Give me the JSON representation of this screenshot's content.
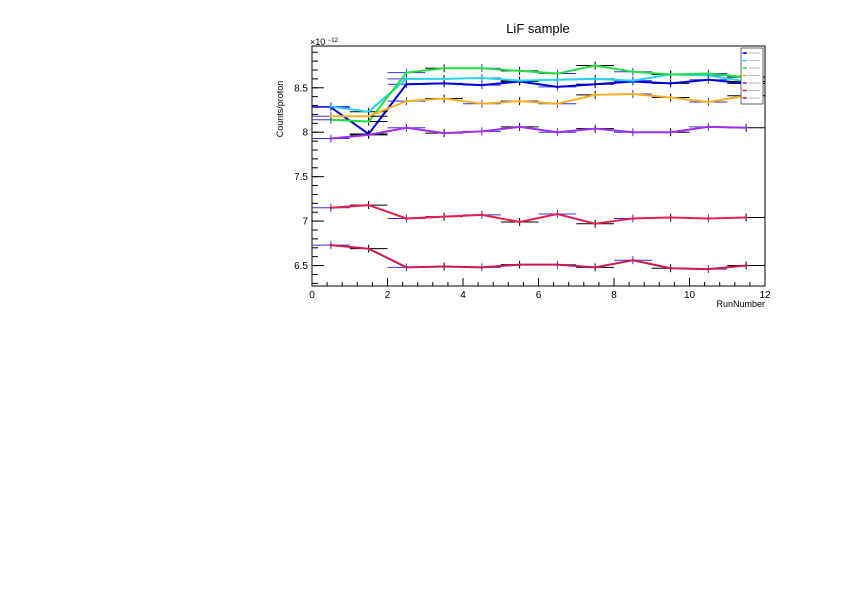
{
  "chart_data": {
    "type": "line",
    "title": "LiF sample",
    "xlabel": "RunNumber",
    "ylabel": "Counts/proton",
    "y_exponent_label": "×10",
    "y_exponent_power": "−12",
    "xlim": [
      0,
      12
    ],
    "ylim": [
      6.27,
      8.97
    ],
    "x_ticks": [
      0,
      2,
      4,
      6,
      8,
      10,
      12
    ],
    "y_ticks": [
      6.5,
      7,
      7.5,
      8,
      8.5
    ],
    "grid": false,
    "legend_position": "top-right",
    "x": [
      0.5,
      1.5,
      2.5,
      3.5,
      4.5,
      5.5,
      6.5,
      7.5,
      8.5,
      9.5,
      10.5,
      11.5
    ],
    "series": [
      {
        "color": "#0000dd",
        "values": [
          8.28,
          7.98,
          8.54,
          8.55,
          8.53,
          8.57,
          8.51,
          8.54,
          8.57,
          8.55,
          8.59,
          8.55
        ]
      },
      {
        "color": "#22d4ee",
        "values": [
          8.29,
          8.23,
          8.6,
          8.6,
          8.61,
          8.58,
          8.59,
          8.6,
          8.58,
          8.65,
          8.64,
          8.57
        ]
      },
      {
        "color": "#22dd44",
        "values": [
          8.14,
          8.12,
          8.67,
          8.72,
          8.72,
          8.69,
          8.66,
          8.75,
          8.68,
          8.65,
          8.66,
          8.62
        ]
      },
      {
        "color": "#f0b020",
        "values": [
          8.18,
          8.18,
          8.35,
          8.38,
          8.32,
          8.35,
          8.32,
          8.42,
          8.43,
          8.39,
          8.34,
          8.41
        ]
      },
      {
        "color": "#9b30ee",
        "values": [
          7.93,
          7.97,
          8.05,
          7.99,
          8.01,
          8.06,
          8.0,
          8.04,
          8.0,
          8.0,
          8.06,
          8.05
        ]
      },
      {
        "color": "#e81e50",
        "values": [
          7.15,
          7.18,
          7.03,
          7.05,
          7.07,
          6.99,
          7.08,
          6.97,
          7.03,
          7.04,
          7.03,
          7.04
        ]
      },
      {
        "color": "#cc1850",
        "values": [
          6.73,
          6.69,
          6.48,
          6.49,
          6.48,
          6.51,
          6.51,
          6.48,
          6.56,
          6.47,
          6.46,
          6.5
        ]
      }
    ]
  }
}
